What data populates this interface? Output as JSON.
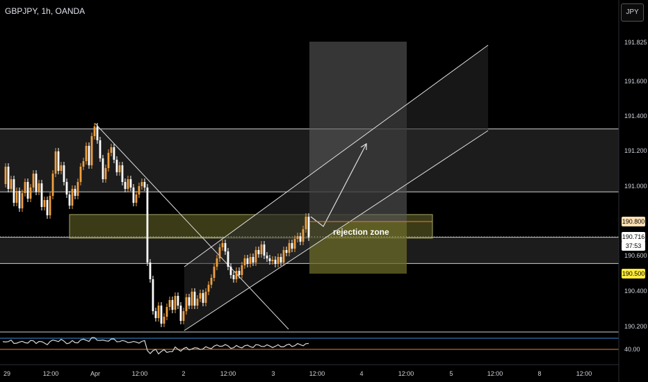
{
  "header": {
    "symbol": "GBPJPY, 1h, OANDA",
    "currency_button": "JPY"
  },
  "y_axis": {
    "ticks": [
      "191.825",
      "191.600",
      "191.400",
      "191.200",
      "191.000",
      "190.600",
      "190.400",
      "190.200"
    ],
    "badges": {
      "resistance": "190.800",
      "last_price": "190.716",
      "countdown": "37:53",
      "support": "190.500"
    }
  },
  "x_axis": {
    "ticks": [
      "29",
      "12:00",
      "Apr",
      "12:00",
      "2",
      "12:00",
      "3",
      "12:00",
      "4",
      "12:00",
      "5",
      "12:00",
      "8",
      "12:00"
    ]
  },
  "annotations": {
    "rejection_zone": "rejection zone"
  },
  "rsi": {
    "level_label": "40.00"
  },
  "colors": {
    "background": "#000000",
    "bull_candle": "#f0a040",
    "bear_candle": "#ffffff",
    "zone_fill": "#6b6b2a",
    "rsi_line": "#d8d8d8",
    "rsi_upper": "#3a8fd8",
    "rsi_lower": "#e8823a",
    "badge_yellow": "#ffeb3b",
    "badge_orange": "#ffe0b2"
  },
  "chart_data": {
    "type": "candlestick",
    "symbol": "GBPJPY",
    "timeframe": "1h",
    "ylim": [
      190.16,
      191.98
    ],
    "last_price": 190.716,
    "zones": [
      {
        "from": 190.97,
        "to": 191.33
      },
      {
        "from": 190.56,
        "to": 190.71
      },
      {
        "from": 190.705,
        "to": 190.84
      }
    ],
    "levels": [
      191.33,
      191.0,
      190.8,
      190.71,
      190.56
    ]
  }
}
